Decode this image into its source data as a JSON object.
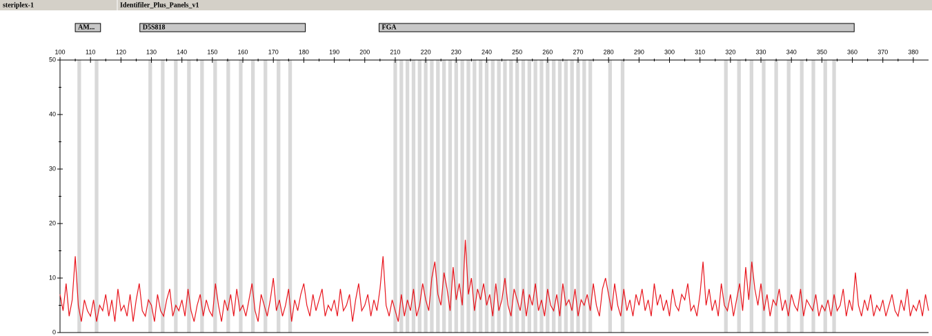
{
  "header": {
    "left": "steriplex-1",
    "right": "Identifiler_Plus_Panels_v1"
  },
  "chart_data": {
    "type": "line",
    "markers": [
      {
        "label": "AM...",
        "start": 105,
        "end": 113.3
      },
      {
        "label": "D5S818",
        "start": 126.2,
        "end": 180.5
      },
      {
        "label": "FGA",
        "start": 204.7,
        "end": 360.6
      }
    ],
    "bins": [
      106.3,
      112,
      129.6,
      133.7,
      138,
      142.3,
      146.6,
      150.9,
      155.2,
      159.3,
      163.3,
      167.4,
      171.7,
      175.5,
      210,
      212,
      214,
      216,
      218,
      220,
      222,
      224,
      226,
      228,
      230,
      232,
      234,
      236,
      238,
      240,
      242,
      244,
      246,
      248,
      250,
      252,
      254,
      256,
      258,
      260,
      262,
      264,
      266,
      268,
      270,
      272,
      274,
      280.5,
      284.6,
      318.5,
      322.8,
      326.9,
      330.9,
      335,
      339.1,
      343.4,
      347.2,
      351.1,
      354
    ],
    "x": [
      100,
      101,
      102,
      103,
      104,
      105,
      106,
      107,
      108,
      109,
      110,
      111,
      112,
      113,
      114,
      115,
      116,
      117,
      118,
      119,
      120,
      121,
      122,
      123,
      124,
      125,
      126,
      127,
      128,
      129,
      130,
      131,
      132,
      133,
      134,
      135,
      136,
      137,
      138,
      139,
      140,
      141,
      142,
      143,
      144,
      145,
      146,
      147,
      148,
      149,
      150,
      151,
      152,
      153,
      154,
      155,
      156,
      157,
      158,
      159,
      160,
      161,
      162,
      163,
      164,
      165,
      166,
      167,
      168,
      169,
      170,
      171,
      172,
      173,
      174,
      175,
      176,
      177,
      178,
      179,
      180,
      181,
      182,
      183,
      184,
      185,
      186,
      187,
      188,
      189,
      190,
      191,
      192,
      193,
      194,
      195,
      196,
      197,
      198,
      199,
      200,
      201,
      202,
      203,
      204,
      205,
      206,
      207,
      208,
      209,
      210,
      211,
      212,
      213,
      214,
      215,
      216,
      217,
      218,
      219,
      220,
      221,
      222,
      223,
      224,
      225,
      226,
      227,
      228,
      229,
      230,
      231,
      232,
      233,
      234,
      235,
      236,
      237,
      238,
      239,
      240,
      241,
      242,
      243,
      244,
      245,
      246,
      247,
      248,
      249,
      250,
      251,
      252,
      253,
      254,
      255,
      256,
      257,
      258,
      259,
      260,
      261,
      262,
      263,
      264,
      265,
      266,
      267,
      268,
      269,
      270,
      271,
      272,
      273,
      274,
      275,
      276,
      277,
      278,
      279,
      280,
      281,
      282,
      283,
      284,
      285,
      286,
      287,
      288,
      289,
      290,
      291,
      292,
      293,
      294,
      295,
      296,
      297,
      298,
      299,
      300,
      301,
      302,
      303,
      304,
      305,
      306,
      307,
      308,
      309,
      310,
      311,
      312,
      313,
      314,
      315,
      316,
      317,
      318,
      319,
      320,
      321,
      322,
      323,
      324,
      325,
      326,
      327,
      328,
      329,
      330,
      331,
      332,
      333,
      334,
      335,
      336,
      337,
      338,
      339,
      340,
      341,
      342,
      343,
      344,
      345,
      346,
      347,
      348,
      349,
      350,
      351,
      352,
      353,
      354,
      355,
      356,
      357,
      358,
      359,
      360,
      361,
      362,
      363,
      364,
      365,
      366,
      367,
      368,
      369,
      370,
      371,
      372,
      373,
      374,
      375,
      376,
      377,
      378,
      379,
      380,
      381,
      382,
      383,
      384,
      385
    ],
    "series": [
      {
        "color": "#e8141c",
        "values": [
          7,
          4,
          9,
          3,
          6,
          14,
          5,
          2,
          6,
          4,
          3,
          6,
          2,
          5,
          4,
          7,
          3,
          6,
          2,
          8,
          4,
          5,
          3,
          7,
          2,
          6,
          9,
          4,
          3,
          6,
          5,
          2,
          7,
          4,
          3,
          6,
          8,
          3,
          5,
          4,
          6,
          3,
          8,
          4,
          2,
          5,
          7,
          3,
          6,
          4,
          3,
          9,
          5,
          2,
          6,
          4,
          7,
          3,
          8,
          4,
          5,
          3,
          6,
          9,
          4,
          2,
          7,
          5,
          3,
          6,
          10,
          4,
          6,
          3,
          5,
          8,
          2,
          6,
          4,
          7,
          9,
          5,
          3,
          7,
          4,
          6,
          8,
          3,
          5,
          4,
          6,
          3,
          8,
          4,
          5,
          7,
          2,
          6,
          9,
          4,
          5,
          7,
          3,
          6,
          4,
          8,
          14,
          5,
          3,
          6,
          4,
          2,
          7,
          3,
          6,
          4,
          8,
          3,
          5,
          9,
          6,
          4,
          10,
          13,
          7,
          5,
          11,
          8,
          4,
          12,
          6,
          9,
          5,
          17,
          7,
          10,
          4,
          8,
          6,
          9,
          5,
          7,
          3,
          9,
          4,
          6,
          10,
          5,
          3,
          8,
          6,
          4,
          8,
          3,
          7,
          5,
          9,
          4,
          6,
          3,
          8,
          5,
          4,
          7,
          3,
          9,
          5,
          6,
          4,
          8,
          3,
          6,
          5,
          7,
          4,
          9,
          5,
          3,
          8,
          10,
          7,
          4,
          9,
          5,
          3,
          8,
          4,
          6,
          3,
          7,
          5,
          8,
          4,
          6,
          3,
          9,
          5,
          7,
          4,
          6,
          3,
          8,
          5,
          4,
          7,
          6,
          9,
          4,
          5,
          3,
          7,
          13,
          5,
          8,
          4,
          6,
          3,
          9,
          5,
          4,
          7,
          3,
          6,
          9,
          4,
          12,
          6,
          13,
          8,
          5,
          9,
          4,
          7,
          3,
          6,
          5,
          8,
          4,
          6,
          3,
          7,
          5,
          4,
          8,
          3,
          6,
          5,
          4,
          7,
          3,
          5,
          4,
          6,
          3,
          7,
          4,
          5,
          8,
          3,
          6,
          4,
          11,
          5,
          3,
          6,
          4,
          7,
          3,
          5,
          4,
          6,
          3,
          5,
          7,
          4,
          3,
          6,
          4,
          8,
          3,
          5,
          4,
          6,
          3,
          7,
          4
        ]
      }
    ],
    "xlim": [
      100,
      385
    ],
    "ylim": [
      0,
      50
    ],
    "xticks": [
      100,
      110,
      120,
      130,
      140,
      150,
      160,
      170,
      180,
      190,
      200,
      210,
      220,
      230,
      240,
      250,
      260,
      270,
      280,
      290,
      300,
      310,
      320,
      330,
      340,
      350,
      360,
      370,
      380
    ],
    "xminorticks": [
      105,
      115,
      125,
      135,
      145,
      155,
      165,
      175,
      185,
      195,
      205,
      215,
      225,
      235,
      245,
      255,
      265,
      275,
      285,
      295,
      305,
      315,
      325,
      335,
      345,
      355,
      365,
      375
    ],
    "yticks": [
      0,
      10,
      20,
      30,
      40,
      50
    ],
    "yminorticks": [
      5,
      15,
      25,
      35,
      45
    ]
  }
}
